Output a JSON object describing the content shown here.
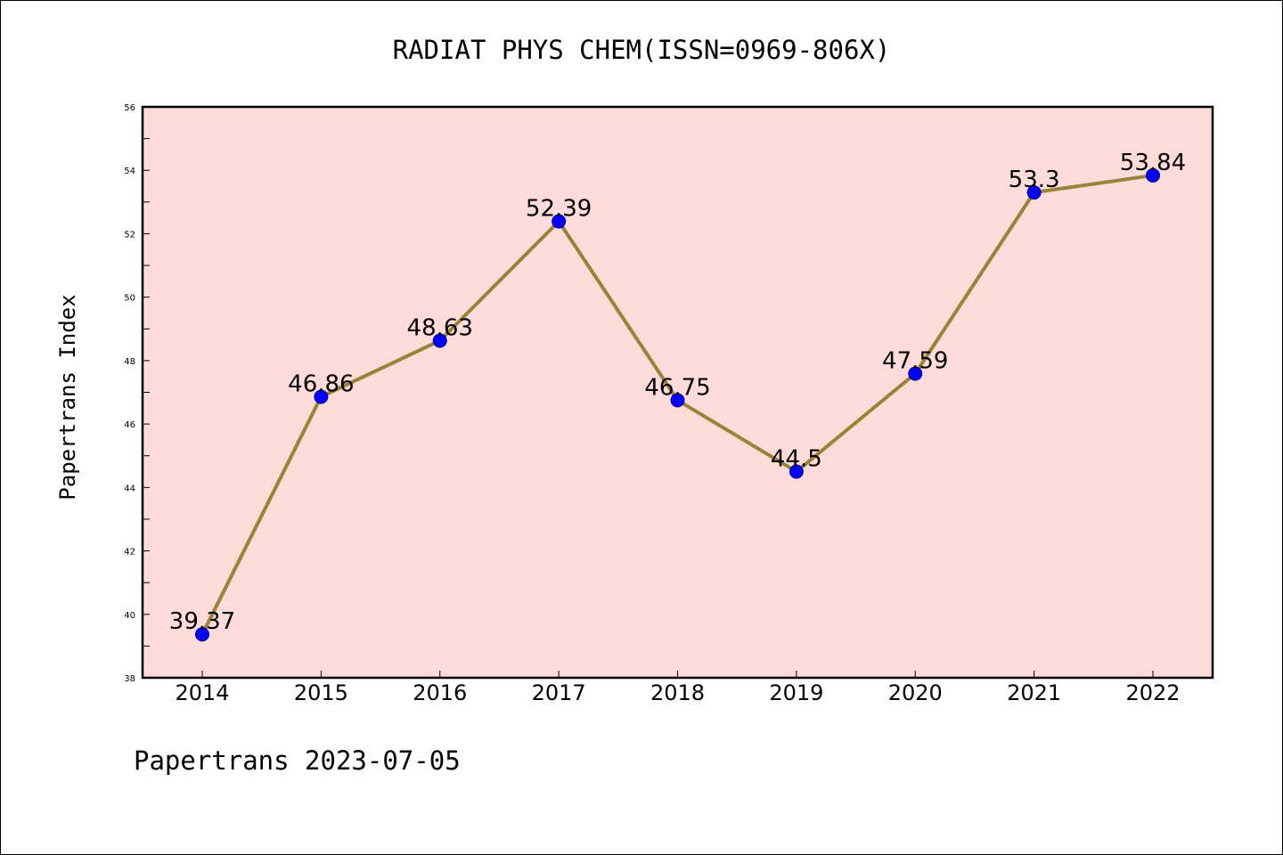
{
  "chart_data": {
    "type": "line",
    "title": "RADIAT PHYS CHEM(ISSN=0969-806X)",
    "xlabel": "",
    "ylabel": "Papertrans Index",
    "footer": "Papertrans 2023-07-05",
    "categories": [
      "2014",
      "2015",
      "2016",
      "2017",
      "2018",
      "2019",
      "2020",
      "2021",
      "2022"
    ],
    "series": [
      {
        "values": [
          39.37,
          46.86,
          48.63,
          52.39,
          46.75,
          44.5,
          47.59,
          53.3,
          53.84
        ],
        "labels": [
          "39.37",
          "46.86",
          "48.63",
          "52.39",
          "46.75",
          "44.5",
          "47.59",
          "53.3",
          "53.84"
        ]
      }
    ],
    "ylim": [
      38,
      56
    ],
    "yticks": [
      "38",
      "40",
      "42",
      "44",
      "46",
      "48",
      "50",
      "52",
      "54",
      "56"
    ],
    "grid": false,
    "legend": "none",
    "colors": {
      "plot_background": "#FFDCDA",
      "line": "#9A8238",
      "marker": "#0000FF",
      "marker_edge": "#00008B",
      "axis": "#000000"
    }
  }
}
